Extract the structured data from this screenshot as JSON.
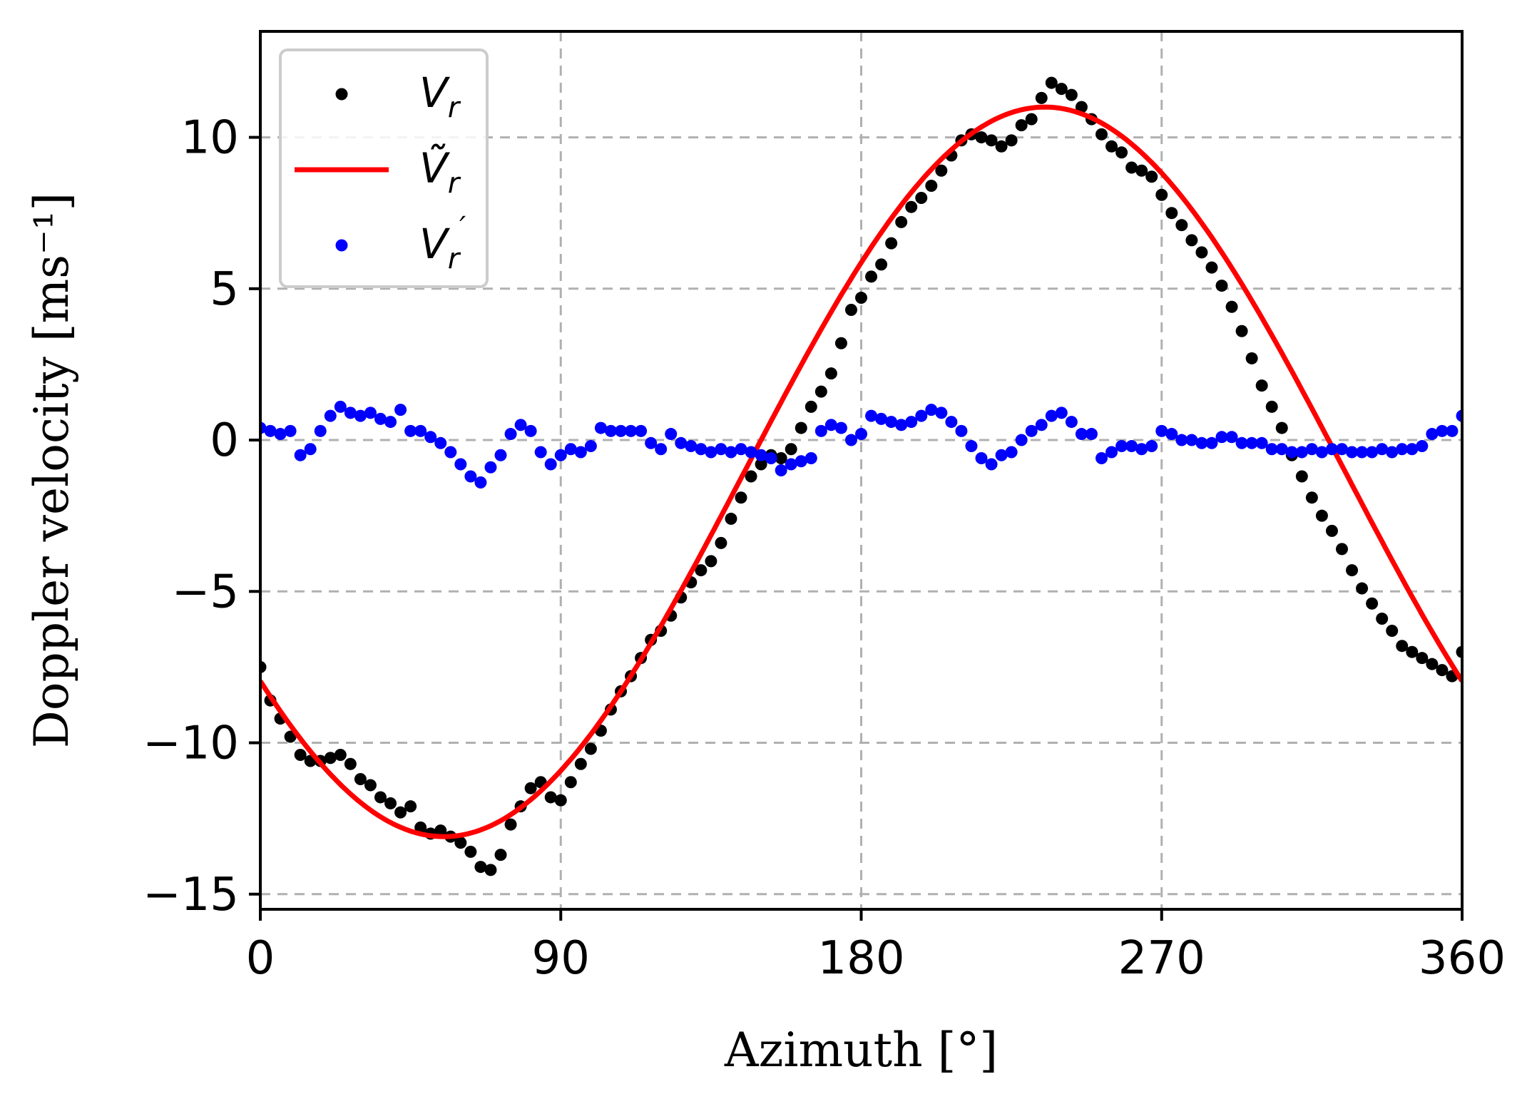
{
  "chart_data": {
    "type": "scatter",
    "xlabel": "Azimuth [°]",
    "ylabel": "Doppler velocity [ms⁻¹]",
    "xlim": [
      0,
      360
    ],
    "ylim": [
      -15.5,
      13.5
    ],
    "xticks": [
      0,
      90,
      180,
      270,
      360
    ],
    "yticks": [
      10,
      5,
      0,
      -5,
      -10,
      -15
    ],
    "ytick_labels": [
      "10",
      "5",
      "0",
      "−5",
      "−10",
      "−15"
    ],
    "grid": true,
    "legend_position": "top-left",
    "series": [
      {
        "name": "V_r",
        "legend": {
          "base": "V",
          "sub": "r",
          "sup": ""
        },
        "kind": "scatter",
        "color": "#000000",
        "x": [
          0,
          3,
          6,
          9,
          12,
          15,
          18,
          21,
          24,
          27,
          30,
          33,
          36,
          39,
          42,
          45,
          48,
          51,
          54,
          57,
          60,
          63,
          66,
          69,
          72,
          75,
          78,
          81,
          84,
          87,
          90,
          93,
          96,
          99,
          102,
          105,
          108,
          111,
          114,
          117,
          120,
          123,
          126,
          129,
          132,
          135,
          138,
          141,
          144,
          147,
          150,
          153,
          156,
          159,
          162,
          165,
          168,
          171,
          174,
          177,
          180,
          183,
          186,
          189,
          192,
          195,
          198,
          201,
          204,
          207,
          210,
          213,
          216,
          219,
          222,
          225,
          228,
          231,
          234,
          237,
          240,
          243,
          246,
          249,
          252,
          255,
          258,
          261,
          264,
          267,
          270,
          273,
          276,
          279,
          282,
          285,
          288,
          291,
          294,
          297,
          300,
          303,
          306,
          309,
          312,
          315,
          318,
          321,
          324,
          327,
          330,
          333,
          336,
          339,
          342,
          345,
          348,
          351,
          354,
          357,
          360
        ],
        "y": [
          -7.5,
          -8.6,
          -9.2,
          -9.8,
          -10.4,
          -10.6,
          -10.6,
          -10.5,
          -10.4,
          -10.7,
          -11.2,
          -11.4,
          -11.8,
          -12.0,
          -12.3,
          -12.1,
          -12.8,
          -13.0,
          -12.9,
          -13.1,
          -13.3,
          -13.6,
          -14.1,
          -14.2,
          -13.7,
          -12.7,
          -12.1,
          -11.5,
          -11.3,
          -11.8,
          -11.9,
          -11.3,
          -10.7,
          -10.2,
          -9.6,
          -8.9,
          -8.3,
          -7.8,
          -7.2,
          -6.6,
          -6.3,
          -5.8,
          -5.2,
          -4.7,
          -4.3,
          -4.0,
          -3.4,
          -2.6,
          -1.9,
          -1.2,
          -0.8,
          -0.5,
          -0.6,
          -0.3,
          0.4,
          1.1,
          1.6,
          2.2,
          3.2,
          4.3,
          4.7,
          5.4,
          5.8,
          6.5,
          7.2,
          7.7,
          8.0,
          8.4,
          8.9,
          9.4,
          9.9,
          10.1,
          10.0,
          9.9,
          9.7,
          9.9,
          10.4,
          10.6,
          11.3,
          11.8,
          11.6,
          11.4,
          11.0,
          10.6,
          10.1,
          9.7,
          9.5,
          9.0,
          8.9,
          8.7,
          8.1,
          7.5,
          7.1,
          6.6,
          6.2,
          5.7,
          5.1,
          4.4,
          3.6,
          2.7,
          1.8,
          1.1,
          0.4,
          -0.5,
          -1.2,
          -1.9,
          -2.5,
          -3.0,
          -3.6,
          -4.3,
          -4.9,
          -5.4,
          -5.9,
          -6.3,
          -6.8,
          -7.0,
          -7.2,
          -7.4,
          -7.6,
          -7.8,
          -7.0
        ]
      },
      {
        "name": "Ṽ_r",
        "legend": {
          "base": "Ṽ",
          "sub": "r",
          "sup": ""
        },
        "kind": "line",
        "color": "#ff0000",
        "model": {
          "mean": -1.05,
          "amplitude": 12.05,
          "phase_deg": 145.0
        }
      },
      {
        "name": "V_r′",
        "legend": {
          "base": "V",
          "sub": "r",
          "sup": "′"
        },
        "kind": "scatter",
        "color": "#0000ff",
        "x": [
          0,
          3,
          6,
          9,
          12,
          15,
          18,
          21,
          24,
          27,
          30,
          33,
          36,
          39,
          42,
          45,
          48,
          51,
          54,
          57,
          60,
          63,
          66,
          69,
          72,
          75,
          78,
          81,
          84,
          87,
          90,
          93,
          96,
          99,
          102,
          105,
          108,
          111,
          114,
          117,
          120,
          123,
          126,
          129,
          132,
          135,
          138,
          141,
          144,
          147,
          150,
          153,
          156,
          159,
          162,
          165,
          168,
          171,
          174,
          177,
          180,
          183,
          186,
          189,
          192,
          195,
          198,
          201,
          204,
          207,
          210,
          213,
          216,
          219,
          222,
          225,
          228,
          231,
          234,
          237,
          240,
          243,
          246,
          249,
          252,
          255,
          258,
          261,
          264,
          267,
          270,
          273,
          276,
          279,
          282,
          285,
          288,
          291,
          294,
          297,
          300,
          303,
          306,
          309,
          312,
          315,
          318,
          321,
          324,
          327,
          330,
          333,
          336,
          339,
          342,
          345,
          348,
          351,
          354,
          357,
          360
        ],
        "y": [
          0.4,
          0.3,
          0.2,
          0.3,
          -0.5,
          -0.3,
          0.3,
          0.8,
          1.1,
          0.9,
          0.8,
          0.9,
          0.7,
          0.6,
          1.0,
          0.3,
          0.3,
          0.1,
          -0.1,
          -0.4,
          -0.8,
          -1.2,
          -1.4,
          -0.9,
          -0.5,
          0.2,
          0.5,
          0.3,
          -0.4,
          -0.8,
          -0.5,
          -0.3,
          -0.4,
          -0.2,
          0.4,
          0.3,
          0.3,
          0.3,
          0.3,
          -0.1,
          -0.3,
          0.2,
          -0.1,
          -0.2,
          -0.3,
          -0.4,
          -0.3,
          -0.4,
          -0.3,
          -0.4,
          -0.5,
          -0.6,
          -1.0,
          -0.8,
          -0.7,
          -0.6,
          0.3,
          0.5,
          0.4,
          0.0,
          0.2,
          0.8,
          0.7,
          0.6,
          0.5,
          0.6,
          0.8,
          1.0,
          0.9,
          0.6,
          0.3,
          -0.2,
          -0.6,
          -0.8,
          -0.5,
          -0.4,
          0.0,
          0.3,
          0.5,
          0.8,
          0.9,
          0.6,
          0.2,
          0.2,
          -0.6,
          -0.4,
          -0.2,
          -0.2,
          -0.3,
          -0.2,
          0.3,
          0.2,
          0.0,
          0.0,
          -0.1,
          -0.1,
          0.1,
          0.1,
          -0.1,
          -0.1,
          -0.1,
          -0.3,
          -0.3,
          -0.4,
          -0.4,
          -0.3,
          -0.4,
          -0.3,
          -0.3,
          -0.4,
          -0.4,
          -0.4,
          -0.3,
          -0.4,
          -0.3,
          -0.3,
          -0.2,
          0.2,
          0.3,
          0.3,
          0.8
        ]
      }
    ]
  }
}
